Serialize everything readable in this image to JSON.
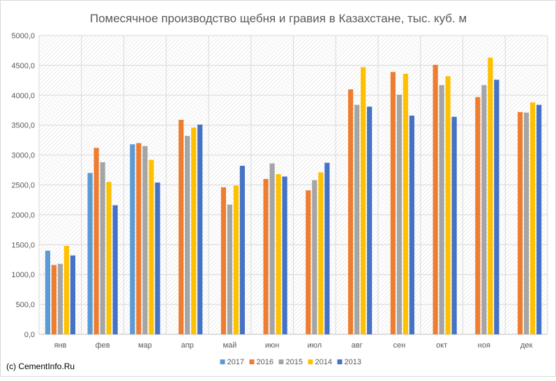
{
  "chart_data": {
    "type": "bar",
    "title": "Помесячное производство щебня и гравия в Казахстане, тыс. куб. м",
    "xlabel": "",
    "ylabel": "",
    "ylim": [
      0,
      5000
    ],
    "yticks": [
      "0,0",
      "500,0",
      "1000,0",
      "1500,0",
      "2000,0",
      "2500,0",
      "3000,0",
      "3500,0",
      "4000,0",
      "4500,0",
      "5000,0"
    ],
    "categories": [
      "янв",
      "фев",
      "мар",
      "апр",
      "май",
      "июн",
      "июл",
      "авг",
      "сен",
      "окт",
      "ноя",
      "дек"
    ],
    "series": [
      {
        "name": "2017",
        "color": "#5b9bd5",
        "values": [
          1400,
          2700,
          3180,
          null,
          null,
          null,
          null,
          null,
          null,
          null,
          null,
          null
        ]
      },
      {
        "name": "2016",
        "color": "#ed7d31",
        "values": [
          1160,
          3120,
          3200,
          3590,
          2460,
          2600,
          2410,
          4100,
          4390,
          4510,
          3970,
          3720
        ]
      },
      {
        "name": "2015",
        "color": "#a5a5a5",
        "values": [
          1180,
          2880,
          3150,
          3320,
          2170,
          2860,
          2580,
          3840,
          4010,
          4170,
          4170,
          3710
        ]
      },
      {
        "name": "2014",
        "color": "#ffc000",
        "values": [
          1480,
          2550,
          2920,
          3460,
          2490,
          2680,
          2710,
          4470,
          4360,
          4320,
          4630,
          3880
        ]
      },
      {
        "name": "2013",
        "color": "#4472c4",
        "values": [
          1320,
          2160,
          2540,
          3510,
          2820,
          2640,
          2870,
          3810,
          3660,
          3640,
          4260,
          3840
        ]
      }
    ],
    "grid": true,
    "legend": "bottom"
  },
  "footer": "(c) CementInfo.Ru"
}
